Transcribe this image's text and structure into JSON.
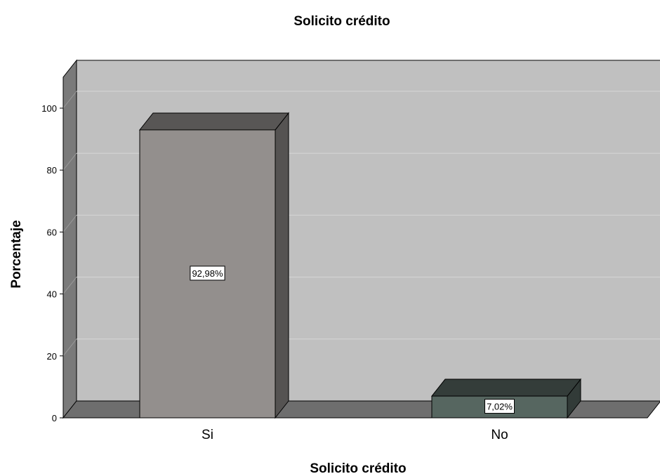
{
  "chart_data": {
    "type": "bar",
    "title": "Solicito crédito",
    "xlabel": "Solicito crédito",
    "ylabel": "Porcentaje",
    "categories": [
      "Si",
      "No"
    ],
    "values": [
      92.98,
      7.02
    ],
    "data_labels": [
      "92,98%",
      "7,02%"
    ],
    "bar_colors": [
      "#938f8d",
      "#566660"
    ],
    "yticks": [
      0,
      20,
      40,
      60,
      80,
      100
    ],
    "ylim": [
      0,
      110
    ],
    "grid": true,
    "style": "3d",
    "colors": {
      "wall": "#c0c0c0",
      "floor": "#6e6e6e",
      "grid": "#d6d6d6"
    }
  }
}
